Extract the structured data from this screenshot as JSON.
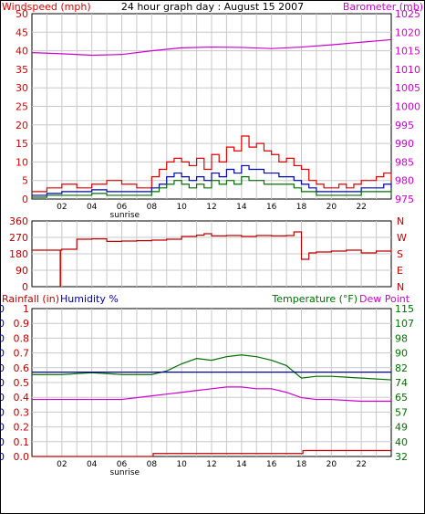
{
  "title": "24 hour graph day : August 15 2007",
  "colors": {
    "wind": "#e00000",
    "gust": "#e00000",
    "avg": "#0000c0",
    "green": "#007000",
    "baro": "#cc00cc",
    "rain": "#c00000",
    "humidity": "#0000a0",
    "temp": "#007000",
    "dew": "#cc00cc",
    "dir": "#c00000"
  },
  "xticks": [
    "02",
    "04",
    "06",
    "08",
    "10",
    "12",
    "14",
    "16",
    "18",
    "20",
    "22"
  ],
  "sunrise_label": "sunrise",
  "chart_data": [
    {
      "type": "line",
      "panel": "wind-barometer",
      "left_axis_label": "Windspeed (mph)",
      "right_axis_label": "Barometer (mb)",
      "left_ticks": [
        "50",
        "45",
        "40",
        "35",
        "30",
        "25",
        "20",
        "15",
        "10",
        "5",
        "0"
      ],
      "right_ticks": [
        "1025",
        "1020",
        "1015",
        "1010",
        "1005",
        "1000",
        "995",
        "990",
        "985",
        "980",
        "975"
      ],
      "ylim_left": [
        0,
        50
      ],
      "ylim_right": [
        975,
        1025
      ],
      "xlim": [
        0,
        24
      ],
      "series": [
        {
          "key": "gust",
          "x": [
            0,
            1,
            2,
            3,
            4,
            5,
            6,
            7,
            8,
            8.5,
            9,
            9.5,
            10,
            10.5,
            11,
            11.5,
            12,
            12.5,
            13,
            13.5,
            14,
            14.5,
            15,
            15.5,
            16,
            16.5,
            17,
            17.5,
            18,
            18.5,
            19,
            19.5,
            20,
            20.5,
            21,
            21.5,
            22,
            22.5,
            23,
            23.5,
            24
          ],
          "y": [
            2,
            3,
            4,
            3,
            4,
            5,
            4,
            3,
            6,
            8,
            10,
            11,
            10,
            9,
            11,
            8,
            12,
            10,
            14,
            13,
            17,
            14,
            15,
            13,
            12,
            10,
            11,
            9,
            8,
            5,
            4,
            3,
            3,
            4,
            3,
            4,
            5,
            5,
            6,
            7,
            5
          ]
        },
        {
          "key": "avg",
          "x": [
            0,
            1,
            2,
            3,
            4,
            5,
            6,
            7,
            8,
            8.5,
            9,
            9.5,
            10,
            10.5,
            11,
            11.5,
            12,
            12.5,
            13,
            13.5,
            14,
            14.5,
            15,
            15.5,
            16,
            16.5,
            17,
            17.5,
            18,
            18.5,
            19,
            19.5,
            20,
            20.5,
            21,
            21.5,
            22,
            22.5,
            23,
            23.5,
            24
          ],
          "y": [
            1,
            1.5,
            2,
            2,
            2.5,
            2,
            2,
            2,
            3,
            4,
            6,
            7,
            6,
            5,
            6,
            5,
            7,
            6,
            8,
            7,
            9,
            8,
            8,
            7,
            7,
            6,
            6,
            5,
            4,
            3,
            2,
            2,
            2,
            2,
            2,
            2,
            3,
            3,
            3,
            4,
            3
          ]
        },
        {
          "key": "green",
          "x": [
            0,
            1,
            2,
            3,
            4,
            5,
            6,
            7,
            8,
            8.5,
            9,
            9.5,
            10,
            10.5,
            11,
            11.5,
            12,
            12.5,
            13,
            13.5,
            14,
            14.5,
            15,
            15.5,
            16,
            16.5,
            17,
            17.5,
            18,
            18.5,
            19,
            19.5,
            20,
            20.5,
            21,
            21.5,
            22,
            22.5,
            23,
            23.5,
            24
          ],
          "y": [
            0.5,
            1,
            1,
            1,
            1.5,
            1,
            1,
            1,
            2,
            3,
            4,
            5,
            4,
            3,
            4,
            3,
            5,
            4,
            5,
            4,
            6,
            5,
            5,
            4,
            4,
            4,
            4,
            3,
            2,
            2,
            1,
            1,
            1,
            1,
            1,
            1,
            2,
            2,
            2,
            2,
            1
          ]
        },
        {
          "key": "baro",
          "axis": "right",
          "x": [
            0,
            2,
            4,
            6,
            8,
            10,
            12,
            14,
            16,
            18,
            20,
            22,
            24
          ],
          "y": [
            1014.5,
            1014.2,
            1013.8,
            1014.0,
            1015.0,
            1015.8,
            1016.0,
            1015.9,
            1015.6,
            1016.0,
            1016.6,
            1017.3,
            1018.0
          ]
        }
      ]
    },
    {
      "type": "line",
      "panel": "wind-direction",
      "left_ticks": [
        "360",
        "270",
        "180",
        "90",
        "0"
      ],
      "right_ticks": [
        "N",
        "W",
        "S",
        "E",
        "N"
      ],
      "ylim": [
        0,
        360
      ],
      "xlim": [
        0,
        24
      ],
      "series": [
        {
          "key": "dir",
          "x": [
            0,
            1,
            2,
            3,
            4,
            5,
            6,
            7,
            8,
            9,
            10,
            11,
            11.5,
            12,
            13,
            14,
            15,
            16,
            17,
            17.5,
            18,
            18.5,
            19,
            20,
            21,
            22,
            23,
            24
          ],
          "y": [
            200,
            200,
            205,
            260,
            262,
            248,
            250,
            252,
            255,
            260,
            275,
            282,
            290,
            278,
            280,
            275,
            280,
            278,
            280,
            300,
            150,
            185,
            190,
            195,
            200,
            185,
            195,
            210
          ]
        }
      ]
    },
    {
      "type": "line",
      "panel": "rain-humidity-temperature",
      "left_label_rain": "Rainfall (in)",
      "left_label_humidity": "Humidity %",
      "right_label_temp": "Temperature (°F)",
      "right_label_dew": "Dew Point",
      "humidity_ticks": [
        "100",
        "90",
        "80",
        "70",
        "60",
        "50",
        "40",
        "30",
        "20",
        "10",
        "0"
      ],
      "rain_ticks": [
        "1",
        "0.9",
        "0.8",
        "0.7",
        "0.6",
        "0.5",
        "0.4",
        "0.3",
        "0.2",
        "0.1",
        "0.0"
      ],
      "temp_ticks": [
        "115",
        "107",
        "98",
        "90",
        "82",
        "74",
        "65",
        "57",
        "49",
        "40",
        "32"
      ],
      "ylim_humidity": [
        0,
        100
      ],
      "ylim_rain": [
        0,
        1
      ],
      "ylim_temp": [
        32,
        115
      ],
      "xlim": [
        0,
        24
      ],
      "series": [
        {
          "key": "temp",
          "x": [
            0,
            2,
            4,
            6,
            8,
            9,
            10,
            11,
            12,
            13,
            14,
            15,
            16,
            17,
            18,
            19,
            20,
            22,
            24
          ],
          "y": [
            78,
            78,
            79,
            78,
            78,
            80,
            84,
            87,
            86,
            88,
            89,
            88,
            86,
            83,
            76,
            77,
            77,
            76,
            75
          ]
        },
        {
          "key": "dew",
          "x": [
            0,
            2,
            4,
            6,
            8,
            9,
            10,
            11,
            12,
            13,
            14,
            15,
            16,
            17,
            18,
            19,
            20,
            22,
            24
          ],
          "y": [
            64,
            64,
            64,
            64,
            66,
            67,
            68,
            69,
            70,
            71,
            71,
            70,
            70,
            68,
            65,
            64,
            64,
            63,
            63
          ]
        },
        {
          "key": "humidity",
          "axis": "humidity",
          "x": [
            0,
            24
          ],
          "y": [
            57,
            57
          ]
        },
        {
          "key": "rain",
          "axis": "rain",
          "x": [
            0,
            8,
            8.1,
            18,
            18.1,
            24
          ],
          "y": [
            0,
            0,
            0.02,
            0.02,
            0.04,
            0.04
          ]
        }
      ]
    }
  ]
}
